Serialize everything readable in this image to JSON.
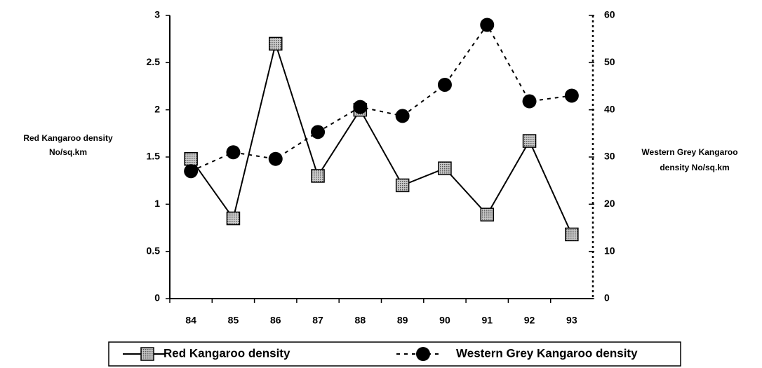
{
  "chart_data": {
    "type": "line",
    "categories": [
      "84",
      "85",
      "86",
      "87",
      "88",
      "89",
      "90",
      "91",
      "92",
      "93"
    ],
    "series": [
      {
        "name": "Red Kangaroo density",
        "color": "#000000",
        "line_style": "solid",
        "marker": "square",
        "axis": "y",
        "values": [
          1.48,
          0.85,
          2.7,
          1.3,
          2.0,
          1.2,
          1.38,
          0.89,
          1.67,
          0.68
        ]
      },
      {
        "name": "Western Grey Kangaroo density",
        "color": "#000000",
        "line_style": "dashed",
        "marker": "circle",
        "axis": "y2",
        "values": [
          27,
          31,
          29.6,
          35.3,
          40.6,
          38.7,
          45.3,
          58,
          41.8,
          43
        ]
      }
    ],
    "ylabel": [
      "Red  Kangaroo density",
      "No/sq.km"
    ],
    "y2label": [
      "Western Grey  Kangaroo",
      "density No/sq.km"
    ],
    "ylim": [
      0,
      3
    ],
    "yticks": [
      0,
      0.5,
      1,
      1.5,
      2,
      2.5,
      3
    ],
    "y2lim": [
      0,
      60
    ],
    "y2ticks": [
      0,
      10,
      20,
      30,
      40,
      50,
      60
    ],
    "grid": false
  }
}
